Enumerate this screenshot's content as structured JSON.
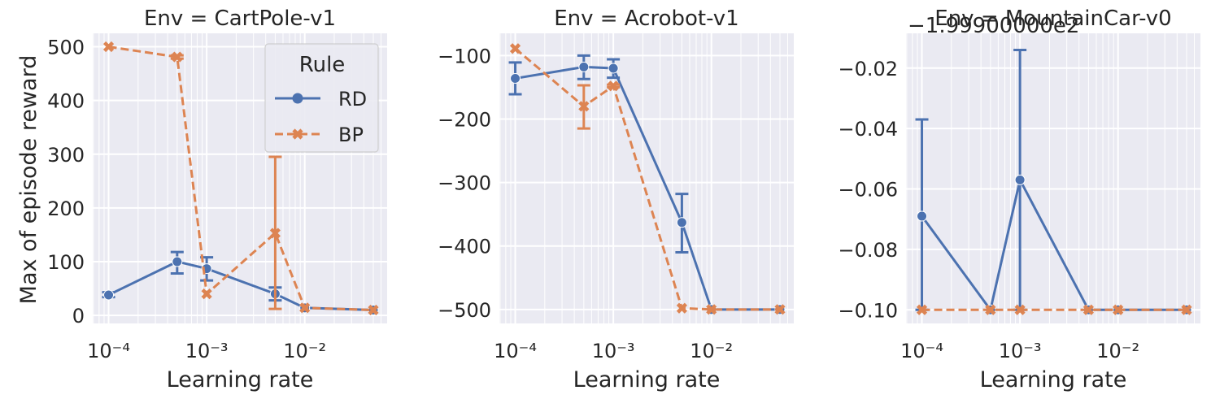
{
  "figure": {
    "ylabel": "Max of episode reward",
    "xlabel": "Learning rate",
    "legend_title": "Rule",
    "offset_text": "−1.99900000e2",
    "colors": {
      "RD": "#4c72b0",
      "BP": "#dd8452",
      "panel_bg": "#eaeaf2",
      "grid": "#ffffff",
      "text": "#262626"
    }
  },
  "chart_data": [
    {
      "type": "line",
      "title": "Env = CartPole-v1",
      "xlabel": "Learning rate",
      "ylabel": "Max of episode reward",
      "xscale": "log",
      "x": [
        0.0001,
        0.0005,
        0.001,
        0.005,
        0.01,
        0.05
      ],
      "x_ticks": [
        "10⁻⁴",
        "10⁻³",
        "10⁻²"
      ],
      "y_ticks": [
        "0",
        "100",
        "200",
        "300",
        "400",
        "500"
      ],
      "ylim": [
        -15,
        525
      ],
      "legend": {
        "title": "Rule",
        "position": "top-right"
      },
      "series": [
        {
          "name": "RD",
          "marker": "circle",
          "dash": "solid",
          "values": [
            38,
            100,
            87,
            40,
            14,
            10
          ],
          "err_low": [
            34,
            78,
            65,
            28,
            12,
            8
          ],
          "err_high": [
            43,
            118,
            108,
            52,
            16,
            12
          ]
        },
        {
          "name": "BP",
          "marker": "x",
          "dash": "dashed",
          "values": [
            500,
            481,
            40,
            153,
            14,
            10
          ],
          "err_low": [
            500,
            478,
            38,
            12,
            12,
            8
          ],
          "err_high": [
            500,
            484,
            42,
            295,
            16,
            12
          ]
        }
      ]
    },
    {
      "type": "line",
      "title": "Env = Acrobot-v1",
      "xlabel": "Learning rate",
      "ylabel": "",
      "xscale": "log",
      "x": [
        0.0001,
        0.0005,
        0.001,
        0.005,
        0.01,
        0.05
      ],
      "x_ticks": [
        "10⁻⁴",
        "10⁻³",
        "10⁻²"
      ],
      "y_ticks": [
        "−500",
        "−400",
        "−300",
        "−200",
        "−100"
      ],
      "ylim": [
        -522,
        -65
      ],
      "series": [
        {
          "name": "RD",
          "marker": "circle",
          "dash": "solid",
          "values": [
            -136,
            -118,
            -120,
            -363,
            -500,
            -500
          ],
          "err_low": [
            -161,
            -137,
            -135,
            -410,
            -500,
            -500
          ],
          "err_high": [
            -111,
            -100,
            -106,
            -318,
            -500,
            -500
          ]
        },
        {
          "name": "BP",
          "marker": "x",
          "dash": "dashed",
          "values": [
            -89,
            -180,
            -148,
            -498,
            -500,
            -500
          ],
          "err_low": [
            -90,
            -215,
            -150,
            -499,
            -500,
            -500
          ],
          "err_high": [
            -88,
            -147,
            -146,
            -497,
            -500,
            -500
          ]
        }
      ]
    },
    {
      "type": "line",
      "title": "Env = MountainCar-v0",
      "xlabel": "Learning rate",
      "ylabel": "",
      "xscale": "log",
      "y_offset_text": "−1.99900000e2",
      "x": [
        0.0001,
        0.0005,
        0.001,
        0.005,
        0.01,
        0.05
      ],
      "x_ticks": [
        "10⁻⁴",
        "10⁻³",
        "10⁻²"
      ],
      "y_ticks": [
        "−0.10",
        "−0.08",
        "−0.06",
        "−0.04",
        "−0.02"
      ],
      "ylim": [
        -0.1045,
        -0.0085
      ],
      "series": [
        {
          "name": "RD",
          "marker": "circle",
          "dash": "solid",
          "values": [
            -0.069,
            -0.1,
            -0.057,
            -0.1,
            -0.1,
            -0.1
          ],
          "err_low": [
            -0.1,
            -0.1,
            -0.1,
            -0.1,
            -0.1,
            -0.1
          ],
          "err_high": [
            -0.037,
            -0.1,
            -0.014,
            -0.1,
            -0.1,
            -0.1
          ]
        },
        {
          "name": "BP",
          "marker": "x",
          "dash": "dashed",
          "values": [
            -0.1,
            -0.1,
            -0.1,
            -0.1,
            -0.1,
            -0.1
          ],
          "err_low": [
            -0.1,
            -0.1,
            -0.1,
            -0.1,
            -0.1,
            -0.1
          ],
          "err_high": [
            -0.1,
            -0.1,
            -0.1,
            -0.1,
            -0.1,
            -0.1
          ]
        }
      ]
    }
  ]
}
